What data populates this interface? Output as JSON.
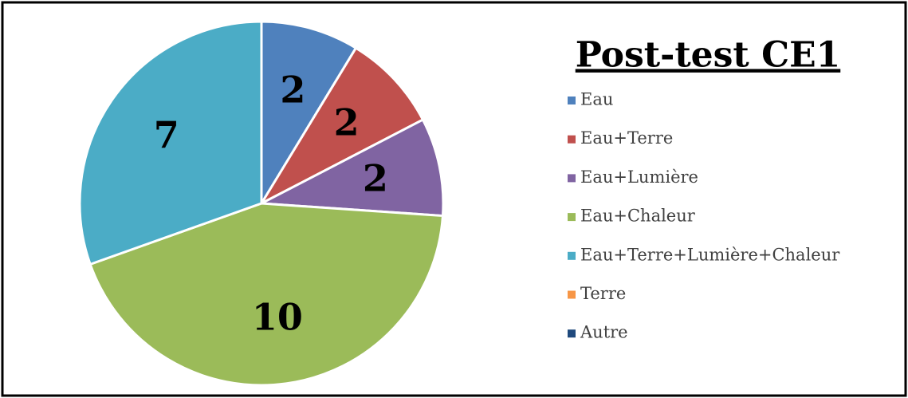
{
  "chart_data": {
    "type": "pie",
    "title": "Post-test CE1",
    "categories": [
      "Eau",
      "Eau+Terre",
      "Eau+Lumière",
      "Eau+Chaleur",
      "Eau+Terre+Lumière+Chaleur",
      "Terre",
      "Autre"
    ],
    "values": [
      2,
      2,
      2,
      10,
      7,
      0,
      0
    ],
    "colors": [
      "#4f81bd",
      "#c0504d",
      "#8064a2",
      "#9bbb59",
      "#4bacc6",
      "#f79646",
      "#1f497d"
    ],
    "legend": "right"
  }
}
